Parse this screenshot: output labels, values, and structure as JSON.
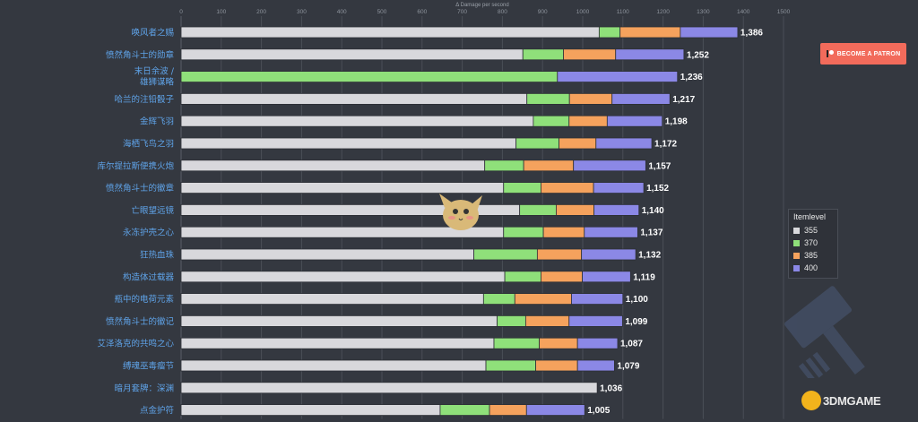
{
  "patron_button": {
    "label": "BECOME A PATRON"
  },
  "legend": {
    "title": "Itemlevel",
    "items": [
      {
        "label": "355",
        "color": "#d8d8dc"
      },
      {
        "label": "370",
        "color": "#8fe07a"
      },
      {
        "label": "385",
        "color": "#f5a25d"
      },
      {
        "label": "400",
        "color": "#8b88e6"
      }
    ]
  },
  "watermark": {
    "text": "3DMGAME"
  },
  "chart_data": {
    "type": "bar",
    "orientation": "horizontal",
    "stacked": true,
    "title": "",
    "xlabel": "Δ Damage per second",
    "ylabel": "",
    "xlim": [
      0,
      1500
    ],
    "xticks": [
      0,
      100,
      200,
      300,
      400,
      500,
      600,
      700,
      800,
      900,
      1000,
      1100,
      1200,
      1300,
      1400,
      1500
    ],
    "grid": true,
    "legend_position": "right",
    "categories": [
      "唤风者之赐",
      "愤然角斗士的勋章",
      "末日余波 / 雄狮谋略",
      "哈兰的注铅骰子",
      "金辉飞羽",
      "海栖飞鸟之羽",
      "库尔提拉斯便携火炮",
      "愤然角斗士的徽章",
      "亡眼望远镜",
      "永冻护壳之心",
      "狂热血珠",
      "构造体过载器",
      "瓶中的电荷元素",
      "愤然角斗士的徽记",
      "艾泽洛克的共鸣之心",
      "缚魂巫毒瘤节",
      "暗月套牌：深渊",
      "点金护符"
    ],
    "totals_labels": [
      "1,386",
      "1,252",
      "1,236",
      "1,217",
      "1,198",
      "1,172",
      "1,157",
      "1,152",
      "1,140",
      "1,137",
      "1,132",
      "1,119",
      "1,100",
      "1,099",
      "1,087",
      "1,079",
      "1,036",
      "1,005"
    ],
    "series": [
      {
        "name": "355",
        "color": "#d8d8dc",
        "values": [
          1041,
          851,
          0,
          861,
          877,
          834,
          756,
          803,
          843,
          803,
          729,
          806,
          753,
          787,
          779,
          759,
          1036,
          645
        ]
      },
      {
        "name": "370",
        "color": "#8fe07a",
        "values": [
          52,
          101,
          937,
          106,
          89,
          107,
          97,
          93,
          91,
          99,
          158,
          90,
          78,
          71,
          113,
          124,
          0,
          123
        ]
      },
      {
        "name": "385",
        "color": "#f5a25d",
        "values": [
          150,
          130,
          0,
          106,
          95,
          92,
          124,
          131,
          94,
          102,
          110,
          103,
          141,
          108,
          95,
          104,
          0,
          92
        ]
      },
      {
        "name": "400",
        "color": "#8b88e6",
        "values": [
          143,
          170,
          299,
          144,
          137,
          139,
          180,
          125,
          112,
          133,
          135,
          120,
          128,
          133,
          100,
          92,
          0,
          145
        ]
      }
    ]
  }
}
